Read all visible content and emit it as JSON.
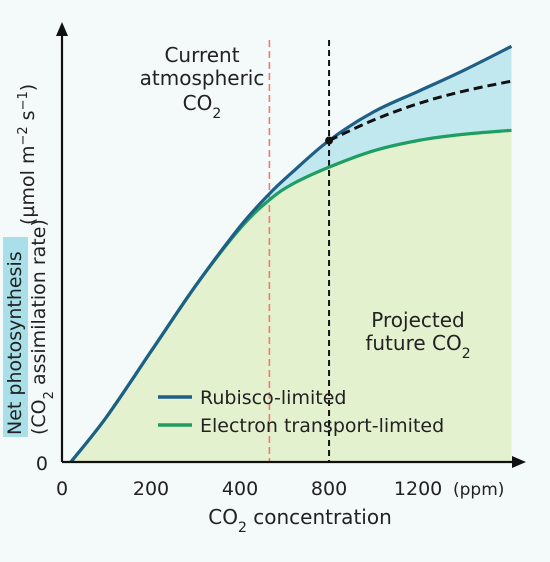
{
  "colors": {
    "background": "#f4f9f9",
    "rubisco": "#1f5f86",
    "electron": "#1e9e62",
    "green_fill": "#e4f1cf",
    "blue_fill": "#c2e8ef",
    "current_line": "#f07a72",
    "future_line": "#111111",
    "axis": "#111111",
    "ylabel_bg": "#a8dfe8"
  },
  "chart_data": {
    "type": "line",
    "xlabel": "CO2 concentration",
    "xunit": "(ppm)",
    "ylabel_line1": "Net photosynthesis",
    "ylabel_line2": "(CO2 assimilation rate)",
    "yunit": "(µmol m−2 s−1)",
    "xticks": [
      {
        "label": "0",
        "pos": 0
      },
      {
        "label": "200",
        "pos": 1
      },
      {
        "label": "400",
        "pos": 2
      },
      {
        "label": "800",
        "pos": 3
      },
      {
        "label": "1200",
        "pos": 4
      }
    ],
    "yticks": [
      {
        "label": "0",
        "value": 0
      }
    ],
    "xlim": [
      0,
      5.1
    ],
    "ylim": [
      0,
      10.5
    ],
    "series": [
      {
        "name": "Rubisco-limited",
        "color": "#1f5f86",
        "x": [
          0.1,
          0.5,
          1.0,
          1.5,
          2.0,
          2.33,
          2.6,
          3.0,
          3.5,
          4.0,
          4.5,
          5.05
        ],
        "y": [
          0,
          1.1,
          2.7,
          4.3,
          5.75,
          6.55,
          7.1,
          7.85,
          8.55,
          9.05,
          9.55,
          10.15
        ]
      },
      {
        "name": "Electron transport-limited",
        "color": "#1e9e62",
        "x": [
          0.1,
          0.5,
          1.0,
          1.5,
          2.0,
          2.33,
          2.6,
          3.0,
          3.5,
          4.0,
          4.5,
          5.05
        ],
        "y": [
          0,
          1.1,
          2.7,
          4.3,
          5.7,
          6.4,
          6.8,
          7.2,
          7.6,
          7.85,
          8.0,
          8.1
        ]
      }
    ],
    "dashed_series": {
      "x": [
        3.0,
        3.5,
        4.0,
        4.5,
        5.05
      ],
      "y": [
        7.85,
        8.35,
        8.75,
        9.05,
        9.3
      ]
    },
    "intersection": {
      "x": 3.0,
      "y": 7.85
    },
    "current_co2_line": {
      "x": 2.33
    },
    "future_co2_line": {
      "x": 3.0
    },
    "annotations": {
      "current_line1": "Current",
      "current_line2": "atmospheric",
      "current_line3": "CO2",
      "future_line1": "Projected",
      "future_line2": "future CO2"
    },
    "legend": {
      "placement": "bottom-left",
      "items": [
        {
          "label": "Rubisco-limited",
          "color": "#1f5f86"
        },
        {
          "label": "Electron transport-limited",
          "color": "#1e9e62"
        }
      ]
    }
  }
}
